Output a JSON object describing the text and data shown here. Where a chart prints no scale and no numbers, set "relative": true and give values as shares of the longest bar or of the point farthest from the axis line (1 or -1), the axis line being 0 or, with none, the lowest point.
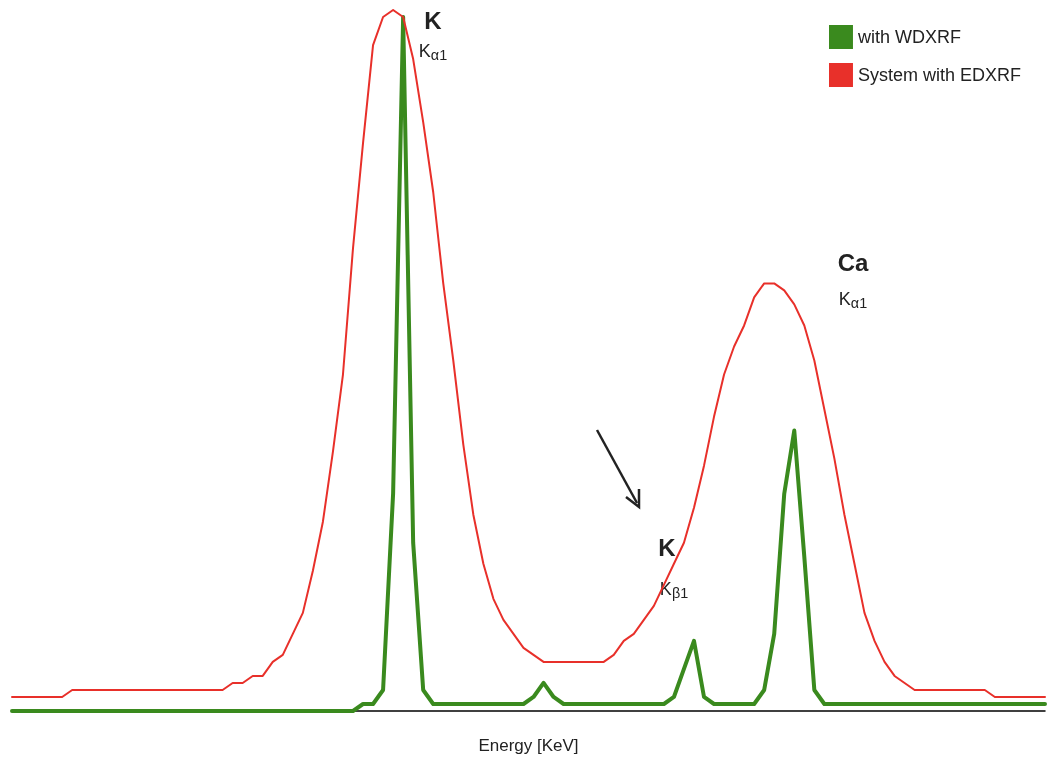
{
  "chart_data": {
    "type": "line",
    "relative": true,
    "xlabel": "Energy [KeV]",
    "categories": [
      null,
      null,
      null,
      null,
      null,
      null,
      null,
      null,
      null,
      null,
      null,
      null,
      null,
      null,
      null,
      null,
      null,
      null,
      null,
      null,
      null,
      null,
      null,
      null,
      null,
      null,
      null,
      null,
      null,
      null,
      null,
      null,
      null,
      null,
      null,
      null,
      null,
      null,
      null,
      null,
      null,
      null,
      null,
      null,
      null,
      null,
      null,
      null,
      null,
      null,
      null,
      null,
      null,
      null,
      null,
      null,
      null,
      null,
      null,
      null,
      null,
      null,
      null,
      null,
      null,
      null,
      null,
      null,
      null,
      null,
      null,
      null,
      null,
      null,
      null,
      null,
      null,
      null,
      null,
      null,
      null,
      null,
      null,
      null,
      null,
      null,
      null,
      null,
      null,
      null,
      null,
      null,
      null,
      null,
      null,
      null,
      null,
      null,
      null,
      null,
      null,
      null,
      null,
      null
    ],
    "series": [
      {
        "name": "with WDXRF",
        "color": "#3a8a1e",
        "values": [
          0,
          0,
          0,
          0,
          0,
          0,
          0,
          0,
          0,
          0,
          0,
          0,
          0,
          0,
          0,
          0,
          0,
          0,
          0,
          0,
          0,
          0,
          0,
          0,
          0,
          0,
          0,
          0,
          0,
          0,
          0,
          0,
          0,
          0,
          0,
          0.01,
          0.01,
          0.03,
          0.31,
          0.99,
          0.24,
          0.03,
          0.01,
          0.01,
          0.01,
          0.01,
          0.01,
          0.01,
          0.01,
          0.01,
          0.01,
          0.01,
          0.02,
          0.04,
          0.02,
          0.01,
          0.01,
          0.01,
          0.01,
          0.01,
          0.01,
          0.01,
          0.01,
          0.01,
          0.01,
          0.01,
          0.02,
          0.06,
          0.1,
          0.02,
          0.01,
          0.01,
          0.01,
          0.01,
          0.01,
          0.03,
          0.11,
          0.31,
          0.4,
          0.22,
          0.03,
          0.01,
          0.01,
          0.01,
          0.01,
          0.01,
          0.01,
          0.01,
          0.01,
          0.01,
          0.01,
          0.01,
          0.01,
          0.01,
          0.01,
          0.01,
          0.01,
          0.01,
          0.01,
          0.01,
          0.01,
          0.01,
          0.01,
          0.01
        ]
      },
      {
        "name": "System with EDXRF",
        "color": "#e8302a",
        "values": [
          0.02,
          0.02,
          0.02,
          0.02,
          0.02,
          0.02,
          0.03,
          0.03,
          0.03,
          0.03,
          0.03,
          0.03,
          0.03,
          0.03,
          0.03,
          0.03,
          0.03,
          0.03,
          0.03,
          0.03,
          0.03,
          0.03,
          0.04,
          0.04,
          0.05,
          0.05,
          0.07,
          0.08,
          0.11,
          0.14,
          0.2,
          0.27,
          0.37,
          0.48,
          0.66,
          0.81,
          0.95,
          0.99,
          1.0,
          0.99,
          0.93,
          0.84,
          0.74,
          0.61,
          0.5,
          0.38,
          0.28,
          0.21,
          0.16,
          0.13,
          0.11,
          0.09,
          0.08,
          0.07,
          0.07,
          0.07,
          0.07,
          0.07,
          0.07,
          0.07,
          0.08,
          0.1,
          0.11,
          0.13,
          0.15,
          0.18,
          0.21,
          0.24,
          0.29,
          0.35,
          0.42,
          0.48,
          0.52,
          0.55,
          0.59,
          0.61,
          0.61,
          0.6,
          0.58,
          0.55,
          0.5,
          0.43,
          0.36,
          0.28,
          0.21,
          0.14,
          0.1,
          0.07,
          0.05,
          0.04,
          0.03,
          0.03,
          0.03,
          0.03,
          0.03,
          0.03,
          0.03,
          0.03,
          0.02,
          0.02,
          0.02,
          0.02,
          0.02,
          0.02
        ]
      }
    ],
    "annotations": [
      "K",
      "K$_{α1}$",
      "Ca",
      "K$_{α1}$",
      "K",
      "K$_{β1}$"
    ],
    "legend": "top right",
    "grid": false,
    "marker": "none",
    "line_style": "solid"
  }
}
